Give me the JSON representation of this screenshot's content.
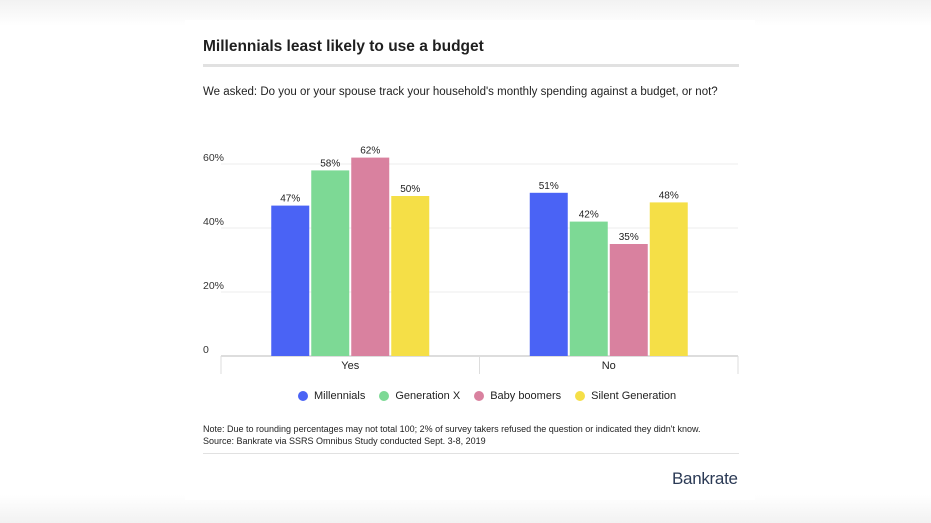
{
  "chart_data": {
    "type": "bar",
    "title": "Millennials least likely to use a budget",
    "subtitle": "We asked: Do you or your spouse track your household's monthly spending against a budget, or not?",
    "categories": [
      "Yes",
      "No"
    ],
    "series": [
      {
        "name": "Millennials",
        "color": "#4a63f5",
        "values": [
          47,
          51
        ]
      },
      {
        "name": "Generation X",
        "color": "#7dd995",
        "values": [
          58,
          42
        ]
      },
      {
        "name": "Baby boomers",
        "color": "#d9819f",
        "values": [
          62,
          35
        ]
      },
      {
        "name": "Silent Generation",
        "color": "#f5df47",
        "values": [
          50,
          48
        ]
      }
    ],
    "value_suffix": "%",
    "y_ticks": [
      "0",
      "20%",
      "40%",
      "60%"
    ],
    "y_tick_values": [
      0,
      20,
      40,
      60
    ],
    "ylim": [
      0,
      65
    ],
    "grid": true,
    "legend_position": "bottom"
  },
  "footer": {
    "note": "Note: Due to rounding percentages may not total 100; 2% of survey takers refused the question or indicated they didn't know.",
    "source": "Source: Bankrate via SSRS Omnibus Study conducted Sept. 3-8, 2019",
    "brand": "Bankrate"
  }
}
